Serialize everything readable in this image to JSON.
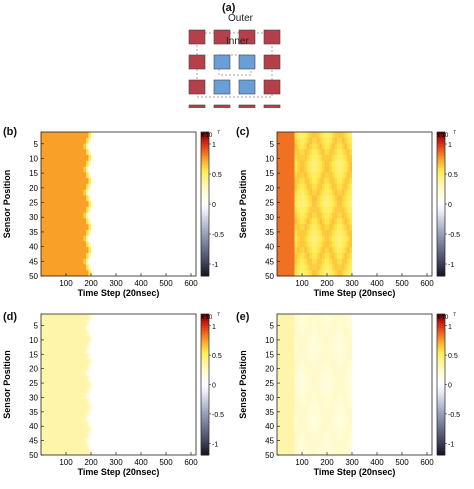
{
  "diagram": {
    "label": "(a)",
    "outer_label": "Outer",
    "inner_label": "Inner",
    "outer_color": "#b5404a",
    "inner_color": "#6a9ed6"
  },
  "colorbar_ticks": [
    "1",
    "0.5",
    "0",
    "-0.5",
    "-1"
  ],
  "colorbar_exponent": "x 10",
  "colorbar_exponent_power": "7",
  "chart_data": [
    {
      "label": "(b)",
      "type": "heatmap",
      "xlabel": "Time Step (20nsec)",
      "ylabel": "Sensor Position",
      "xticks": [
        "100",
        "200",
        "300",
        "400",
        "500",
        "600"
      ],
      "yticks": [
        "5",
        "10",
        "15",
        "20",
        "25",
        "30",
        "35",
        "40",
        "45",
        "50"
      ],
      "xlim": [
        0,
        620
      ],
      "ylim": [
        1,
        50
      ],
      "clim": [
        -1.2,
        1.2
      ],
      "pattern": "step",
      "level_main": 0.75,
      "front_center": 190,
      "front_amp": 8
    },
    {
      "label": "(c)",
      "type": "heatmap",
      "xlabel": "Time Step (20nsec)",
      "ylabel": "Sensor Position",
      "xticks": [
        "100",
        "200",
        "300",
        "400",
        "500",
        "600"
      ],
      "yticks": [
        "5",
        "10",
        "15",
        "20",
        "25",
        "30",
        "35",
        "40",
        "45",
        "50"
      ],
      "xlim": [
        0,
        620
      ],
      "ylim": [
        1,
        50
      ],
      "clim": [
        -1.2,
        1.2
      ],
      "pattern": "diamond",
      "level_main": 0.55,
      "level_early": 0.85,
      "end": 300
    },
    {
      "label": "(d)",
      "type": "heatmap",
      "xlabel": "Time Step (20nsec)",
      "ylabel": "Sensor Position",
      "xticks": [
        "100",
        "200",
        "300",
        "400",
        "500",
        "600"
      ],
      "yticks": [
        "5",
        "10",
        "15",
        "20",
        "25",
        "30",
        "35",
        "40",
        "45",
        "50"
      ],
      "xlim": [
        0,
        620
      ],
      "ylim": [
        1,
        50
      ],
      "clim": [
        -1.2,
        1.2
      ],
      "pattern": "step",
      "level_main": 0.35,
      "front_center": 190,
      "front_amp": 8
    },
    {
      "label": "(e)",
      "type": "heatmap",
      "xlabel": "Time Step (20nsec)",
      "ylabel": "Sensor Position",
      "xticks": [
        "100",
        "200",
        "300",
        "400",
        "500",
        "600"
      ],
      "yticks": [
        "5",
        "10",
        "15",
        "20",
        "25",
        "30",
        "35",
        "40",
        "45",
        "50"
      ],
      "xlim": [
        0,
        620
      ],
      "ylim": [
        1,
        50
      ],
      "clim": [
        -1.2,
        1.2
      ],
      "pattern": "diamond",
      "level_main": 0.2,
      "level_early": 0.35,
      "end": 300
    }
  ]
}
